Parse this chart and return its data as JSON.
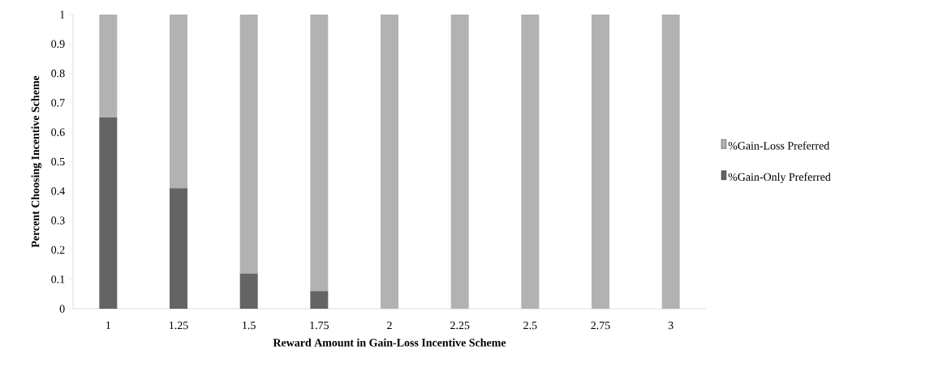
{
  "chart_data": {
    "type": "bar",
    "stacked": true,
    "xlabel": "Reward Amount in Gain-Loss Incentive Scheme",
    "ylabel": "Percent Choosing Incentive Scheme",
    "categories": [
      "1",
      "1.25",
      "1.5",
      "1.75",
      "2",
      "2.25",
      "2.5",
      "2.75",
      "3"
    ],
    "series": [
      {
        "name": "%Gain-Only Preferred",
        "color": "#646464",
        "values": [
          0.65,
          0.41,
          0.12,
          0.06,
          0,
          0,
          0,
          0,
          0
        ]
      },
      {
        "name": "%Gain-Loss Preferred",
        "color": "#b2b2b2",
        "values": [
          0.35,
          0.59,
          0.88,
          0.94,
          1,
          1,
          1,
          1,
          1
        ]
      }
    ],
    "ylim": [
      0,
      1
    ],
    "yticks": [
      0,
      0.1,
      0.2,
      0.3,
      0.4,
      0.5,
      0.6,
      0.7,
      0.8,
      0.9,
      1
    ],
    "grid": false,
    "legend": "right"
  }
}
